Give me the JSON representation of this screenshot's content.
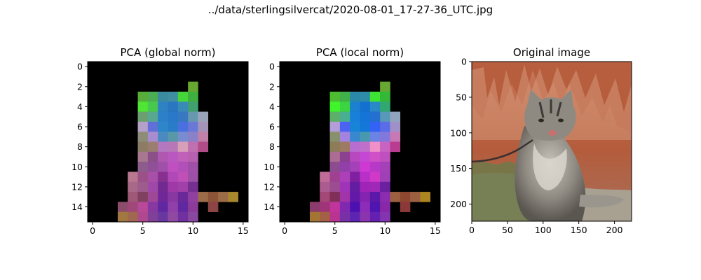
{
  "figure": {
    "suptitle": "../data/sterlingsilvercat/2020-08-01_17-27-36_UTC.jpg"
  },
  "chart_data": [
    {
      "type": "heatmap",
      "title": "PCA (global norm)",
      "xlabel": "",
      "ylabel": "",
      "xlim": [
        -0.5,
        15.5
      ],
      "ylim": [
        15.5,
        -0.5
      ],
      "xticks": [
        0,
        5,
        10,
        15
      ],
      "yticks": [
        0,
        2,
        4,
        6,
        8,
        10,
        12,
        14
      ],
      "grid": false,
      "background_color": "#000000",
      "cells": [
        {
          "x": 10,
          "y": 2,
          "color": "#66a832"
        },
        {
          "x": 5,
          "y": 3,
          "color": "#58ad3a"
        },
        {
          "x": 6,
          "y": 3,
          "color": "#4cae52"
        },
        {
          "x": 7,
          "y": 3,
          "color": "#3a8aa0"
        },
        {
          "x": 8,
          "y": 3,
          "color": "#3f8ea2"
        },
        {
          "x": 9,
          "y": 3,
          "color": "#46d63a"
        },
        {
          "x": 10,
          "y": 3,
          "color": "#3fb040"
        },
        {
          "x": 5,
          "y": 4,
          "color": "#4ee534"
        },
        {
          "x": 6,
          "y": 4,
          "color": "#48c84c"
        },
        {
          "x": 7,
          "y": 4,
          "color": "#2e82c2"
        },
        {
          "x": 8,
          "y": 4,
          "color": "#2a76c0"
        },
        {
          "x": 9,
          "y": 4,
          "color": "#3a8ab8"
        },
        {
          "x": 10,
          "y": 4,
          "color": "#40a070"
        },
        {
          "x": 5,
          "y": 5,
          "color": "#6aa070"
        },
        {
          "x": 6,
          "y": 5,
          "color": "#58a890"
        },
        {
          "x": 7,
          "y": 5,
          "color": "#2c80c8"
        },
        {
          "x": 8,
          "y": 5,
          "color": "#2a78c8"
        },
        {
          "x": 9,
          "y": 5,
          "color": "#3878c0"
        },
        {
          "x": 10,
          "y": 5,
          "color": "#6898b0"
        },
        {
          "x": 11,
          "y": 5,
          "color": "#9aa4b8"
        },
        {
          "x": 5,
          "y": 6,
          "color": "#b4a0c8"
        },
        {
          "x": 6,
          "y": 6,
          "color": "#6070d8"
        },
        {
          "x": 7,
          "y": 6,
          "color": "#2e86c8"
        },
        {
          "x": 8,
          "y": 6,
          "color": "#2a7cc8"
        },
        {
          "x": 9,
          "y": 6,
          "color": "#4a70e0"
        },
        {
          "x": 10,
          "y": 6,
          "color": "#6a78d8"
        },
        {
          "x": 11,
          "y": 6,
          "color": "#a494b8"
        },
        {
          "x": 5,
          "y": 7,
          "color": "#8c8c78"
        },
        {
          "x": 6,
          "y": 7,
          "color": "#a88cd0"
        },
        {
          "x": 7,
          "y": 7,
          "color": "#4a8ac0"
        },
        {
          "x": 8,
          "y": 7,
          "color": "#5898a8"
        },
        {
          "x": 9,
          "y": 7,
          "color": "#7a8cd0"
        },
        {
          "x": 10,
          "y": 7,
          "color": "#8a82c8"
        },
        {
          "x": 11,
          "y": 7,
          "color": "#c080a8"
        },
        {
          "x": 5,
          "y": 8,
          "color": "#8c7c64"
        },
        {
          "x": 6,
          "y": 8,
          "color": "#9c7e70"
        },
        {
          "x": 7,
          "y": 8,
          "color": "#b478c0"
        },
        {
          "x": 8,
          "y": 8,
          "color": "#b878b8"
        },
        {
          "x": 9,
          "y": 8,
          "color": "#d8a0b8"
        },
        {
          "x": 10,
          "y": 8,
          "color": "#c070b0"
        },
        {
          "x": 11,
          "y": 8,
          "color": "#b04c88"
        },
        {
          "x": 5,
          "y": 9,
          "color": "#a87890"
        },
        {
          "x": 6,
          "y": 9,
          "color": "#8c5088"
        },
        {
          "x": 7,
          "y": 9,
          "color": "#b058b0"
        },
        {
          "x": 8,
          "y": 9,
          "color": "#b858c0"
        },
        {
          "x": 9,
          "y": 9,
          "color": "#c060b8"
        },
        {
          "x": 10,
          "y": 9,
          "color": "#b860b0"
        },
        {
          "x": 5,
          "y": 10,
          "color": "#8c5c8c"
        },
        {
          "x": 6,
          "y": 10,
          "color": "#905098"
        },
        {
          "x": 7,
          "y": 10,
          "color": "#a050a8"
        },
        {
          "x": 8,
          "y": 10,
          "color": "#c050c0"
        },
        {
          "x": 9,
          "y": 10,
          "color": "#b050b8"
        },
        {
          "x": 10,
          "y": 10,
          "color": "#a050a8"
        },
        {
          "x": 4,
          "y": 11,
          "color": "#b87890"
        },
        {
          "x": 5,
          "y": 11,
          "color": "#9c5088"
        },
        {
          "x": 6,
          "y": 11,
          "color": "#a850a8"
        },
        {
          "x": 7,
          "y": 11,
          "color": "#883090"
        },
        {
          "x": 8,
          "y": 11,
          "color": "#b048b8"
        },
        {
          "x": 9,
          "y": 11,
          "color": "#c050b8"
        },
        {
          "x": 10,
          "y": 11,
          "color": "#9c50a8"
        },
        {
          "x": 4,
          "y": 12,
          "color": "#a86888"
        },
        {
          "x": 5,
          "y": 12,
          "color": "#9c5c8c"
        },
        {
          "x": 6,
          "y": 12,
          "color": "#a048a8"
        },
        {
          "x": 7,
          "y": 12,
          "color": "#702a90"
        },
        {
          "x": 8,
          "y": 12,
          "color": "#a038a8"
        },
        {
          "x": 9,
          "y": 12,
          "color": "#a040a8"
        },
        {
          "x": 10,
          "y": 12,
          "color": "#743090"
        },
        {
          "x": 4,
          "y": 13,
          "color": "#a05878"
        },
        {
          "x": 5,
          "y": 13,
          "color": "#804060"
        },
        {
          "x": 6,
          "y": 13,
          "color": "#a04898"
        },
        {
          "x": 7,
          "y": 13,
          "color": "#702898"
        },
        {
          "x": 8,
          "y": 13,
          "color": "#8838a0"
        },
        {
          "x": 9,
          "y": 13,
          "color": "#6a2898"
        },
        {
          "x": 10,
          "y": 13,
          "color": "#9040a0"
        },
        {
          "x": 11,
          "y": 13,
          "color": "#9c6c48"
        },
        {
          "x": 12,
          "y": 13,
          "color": "#8c5438"
        },
        {
          "x": 13,
          "y": 13,
          "color": "#9c6c48"
        },
        {
          "x": 14,
          "y": 13,
          "color": "#a8882c"
        },
        {
          "x": 3,
          "y": 14,
          "color": "#8c4c6c"
        },
        {
          "x": 4,
          "y": 14,
          "color": "#a04878"
        },
        {
          "x": 5,
          "y": 14,
          "color": "#b84898"
        },
        {
          "x": 6,
          "y": 14,
          "color": "#8838a0"
        },
        {
          "x": 7,
          "y": 14,
          "color": "#6028a0"
        },
        {
          "x": 8,
          "y": 14,
          "color": "#9040a8"
        },
        {
          "x": 9,
          "y": 14,
          "color": "#6028a0"
        },
        {
          "x": 10,
          "y": 14,
          "color": "#8c3c98"
        },
        {
          "x": 12,
          "y": 14,
          "color": "#8c4444"
        },
        {
          "x": 3,
          "y": 15,
          "color": "#a07840"
        },
        {
          "x": 4,
          "y": 15,
          "color": "#a06850"
        },
        {
          "x": 5,
          "y": 15,
          "color": "#b04890"
        },
        {
          "x": 6,
          "y": 15,
          "color": "#804098"
        },
        {
          "x": 7,
          "y": 15,
          "color": "#6838a0"
        },
        {
          "x": 8,
          "y": 15,
          "color": "#9048a0"
        },
        {
          "x": 9,
          "y": 15,
          "color": "#7030a0"
        },
        {
          "x": 10,
          "y": 15,
          "color": "#8848a0"
        }
      ]
    },
    {
      "type": "heatmap",
      "title": "PCA (local norm)",
      "xlabel": "",
      "ylabel": "",
      "xlim": [
        -0.5,
        15.5
      ],
      "ylim": [
        15.5,
        -0.5
      ],
      "xticks": [
        0,
        5,
        10,
        15
      ],
      "yticks": [
        0,
        2,
        4,
        6,
        8,
        10,
        12,
        14
      ],
      "grid": false,
      "background_color": "#000000",
      "cells": [
        {
          "x": 10,
          "y": 2,
          "color": "#66a832"
        },
        {
          "x": 5,
          "y": 3,
          "color": "#4ebc30"
        },
        {
          "x": 6,
          "y": 3,
          "color": "#40b048"
        },
        {
          "x": 7,
          "y": 3,
          "color": "#2a88a8"
        },
        {
          "x": 8,
          "y": 3,
          "color": "#2e8ca8"
        },
        {
          "x": 9,
          "y": 3,
          "color": "#3ee434"
        },
        {
          "x": 10,
          "y": 3,
          "color": "#34b838"
        },
        {
          "x": 5,
          "y": 4,
          "color": "#40f42c"
        },
        {
          "x": 6,
          "y": 4,
          "color": "#3cd440"
        },
        {
          "x": 7,
          "y": 4,
          "color": "#1a80d0"
        },
        {
          "x": 8,
          "y": 4,
          "color": "#1470d0"
        },
        {
          "x": 9,
          "y": 4,
          "color": "#2888c8"
        },
        {
          "x": 10,
          "y": 4,
          "color": "#30a870"
        },
        {
          "x": 5,
          "y": 5,
          "color": "#5cb068"
        },
        {
          "x": 6,
          "y": 5,
          "color": "#48b090"
        },
        {
          "x": 7,
          "y": 5,
          "color": "#1880d8"
        },
        {
          "x": 8,
          "y": 5,
          "color": "#1474d8"
        },
        {
          "x": 9,
          "y": 5,
          "color": "#2470d0"
        },
        {
          "x": 10,
          "y": 5,
          "color": "#5898b8"
        },
        {
          "x": 11,
          "y": 5,
          "color": "#90a4c0"
        },
        {
          "x": 5,
          "y": 6,
          "color": "#b49ed8"
        },
        {
          "x": 6,
          "y": 6,
          "color": "#4c62f0"
        },
        {
          "x": 7,
          "y": 6,
          "color": "#1884d8"
        },
        {
          "x": 8,
          "y": 6,
          "color": "#1478d8"
        },
        {
          "x": 9,
          "y": 6,
          "color": "#3462f4"
        },
        {
          "x": 10,
          "y": 6,
          "color": "#5a6ce8"
        },
        {
          "x": 11,
          "y": 6,
          "color": "#a090c8"
        },
        {
          "x": 5,
          "y": 7,
          "color": "#88906c"
        },
        {
          "x": 6,
          "y": 7,
          "color": "#a482e0"
        },
        {
          "x": 7,
          "y": 7,
          "color": "#3888d0"
        },
        {
          "x": 8,
          "y": 7,
          "color": "#4898b0"
        },
        {
          "x": 9,
          "y": 7,
          "color": "#6c82e4"
        },
        {
          "x": 10,
          "y": 7,
          "color": "#8278dc"
        },
        {
          "x": 11,
          "y": 7,
          "color": "#c878b4"
        },
        {
          "x": 5,
          "y": 8,
          "color": "#8c7c58"
        },
        {
          "x": 6,
          "y": 8,
          "color": "#9c7a64"
        },
        {
          "x": 7,
          "y": 8,
          "color": "#b86ed0"
        },
        {
          "x": 8,
          "y": 8,
          "color": "#c070c8"
        },
        {
          "x": 9,
          "y": 8,
          "color": "#f090c8"
        },
        {
          "x": 10,
          "y": 8,
          "color": "#c864c0"
        },
        {
          "x": 11,
          "y": 8,
          "color": "#b83c90"
        },
        {
          "x": 5,
          "y": 9,
          "color": "#ac6c94"
        },
        {
          "x": 6,
          "y": 9,
          "color": "#8c4090"
        },
        {
          "x": 7,
          "y": 9,
          "color": "#b848c0"
        },
        {
          "x": 8,
          "y": 9,
          "color": "#c448d4"
        },
        {
          "x": 9,
          "y": 9,
          "color": "#d050c8"
        },
        {
          "x": 10,
          "y": 9,
          "color": "#c050c0"
        },
        {
          "x": 5,
          "y": 10,
          "color": "#8c4c90"
        },
        {
          "x": 6,
          "y": 10,
          "color": "#9040a8"
        },
        {
          "x": 7,
          "y": 10,
          "color": "#a440b8"
        },
        {
          "x": 8,
          "y": 10,
          "color": "#d038d4"
        },
        {
          "x": 9,
          "y": 10,
          "color": "#b838c8"
        },
        {
          "x": 10,
          "y": 10,
          "color": "#a440b8"
        },
        {
          "x": 4,
          "y": 11,
          "color": "#c06c98"
        },
        {
          "x": 5,
          "y": 11,
          "color": "#a04090"
        },
        {
          "x": 6,
          "y": 11,
          "color": "#ac40b8"
        },
        {
          "x": 7,
          "y": 11,
          "color": "#8020a0"
        },
        {
          "x": 8,
          "y": 11,
          "color": "#b830c8"
        },
        {
          "x": 9,
          "y": 11,
          "color": "#d038c8"
        },
        {
          "x": 10,
          "y": 11,
          "color": "#a040b8"
        },
        {
          "x": 4,
          "y": 12,
          "color": "#ac5c90"
        },
        {
          "x": 5,
          "y": 12,
          "color": "#9c4c90"
        },
        {
          "x": 6,
          "y": 12,
          "color": "#a034b8"
        },
        {
          "x": 7,
          "y": 12,
          "color": "#641ca0"
        },
        {
          "x": 8,
          "y": 12,
          "color": "#a024b8"
        },
        {
          "x": 9,
          "y": 12,
          "color": "#a028b8"
        },
        {
          "x": 10,
          "y": 12,
          "color": "#6a20a0"
        },
        {
          "x": 4,
          "y": 13,
          "color": "#a44878"
        },
        {
          "x": 5,
          "y": 13,
          "color": "#803058"
        },
        {
          "x": 6,
          "y": 13,
          "color": "#a034a8"
        },
        {
          "x": 7,
          "y": 13,
          "color": "#6418a8"
        },
        {
          "x": 8,
          "y": 13,
          "color": "#8424b0"
        },
        {
          "x": 9,
          "y": 13,
          "color": "#5c18a8"
        },
        {
          "x": 10,
          "y": 13,
          "color": "#8c2cb0"
        },
        {
          "x": 11,
          "y": 13,
          "color": "#9c6040"
        },
        {
          "x": 12,
          "y": 13,
          "color": "#8c4830"
        },
        {
          "x": 13,
          "y": 13,
          "color": "#9c6040"
        },
        {
          "x": 14,
          "y": 13,
          "color": "#ac8420"
        },
        {
          "x": 3,
          "y": 14,
          "color": "#8c3c6c"
        },
        {
          "x": 4,
          "y": 14,
          "color": "#a03478"
        },
        {
          "x": 5,
          "y": 14,
          "color": "#c0349c"
        },
        {
          "x": 6,
          "y": 14,
          "color": "#8028b0"
        },
        {
          "x": 7,
          "y": 14,
          "color": "#4c10b0"
        },
        {
          "x": 8,
          "y": 14,
          "color": "#8c2cb8"
        },
        {
          "x": 9,
          "y": 14,
          "color": "#5014b0"
        },
        {
          "x": 10,
          "y": 14,
          "color": "#8828a8"
        },
        {
          "x": 12,
          "y": 14,
          "color": "#8c3838"
        },
        {
          "x": 3,
          "y": 15,
          "color": "#a47434"
        },
        {
          "x": 4,
          "y": 15,
          "color": "#a46044"
        },
        {
          "x": 5,
          "y": 15,
          "color": "#b83490"
        },
        {
          "x": 6,
          "y": 15,
          "color": "#7830a8"
        },
        {
          "x": 7,
          "y": 15,
          "color": "#5c24b0"
        },
        {
          "x": 8,
          "y": 15,
          "color": "#8c34b0"
        },
        {
          "x": 9,
          "y": 15,
          "color": "#6420b0"
        },
        {
          "x": 10,
          "y": 15,
          "color": "#8434b0"
        }
      ]
    },
    {
      "type": "image",
      "title": "Original image",
      "xlabel": "",
      "ylabel": "",
      "xlim": [
        0,
        224
      ],
      "ylim": [
        224,
        0
      ],
      "xticks": [
        0,
        50,
        100,
        150,
        200
      ],
      "yticks": [
        0,
        50,
        100,
        150,
        200
      ],
      "grid": false,
      "scene": {
        "sky_color": "#c06a48",
        "canyon_colors": [
          "#b45a3a",
          "#d89a7a",
          "#9c4a2e",
          "#e0b8a0"
        ],
        "ground_color": "#a8a090",
        "bush_color": "#6e7a4a",
        "cat_fur_color": "#8e8a82",
        "cat_dark_color": "#3c3a36",
        "cat_light_color": "#dcd8d0",
        "leash_color": "#3a3030"
      }
    }
  ]
}
